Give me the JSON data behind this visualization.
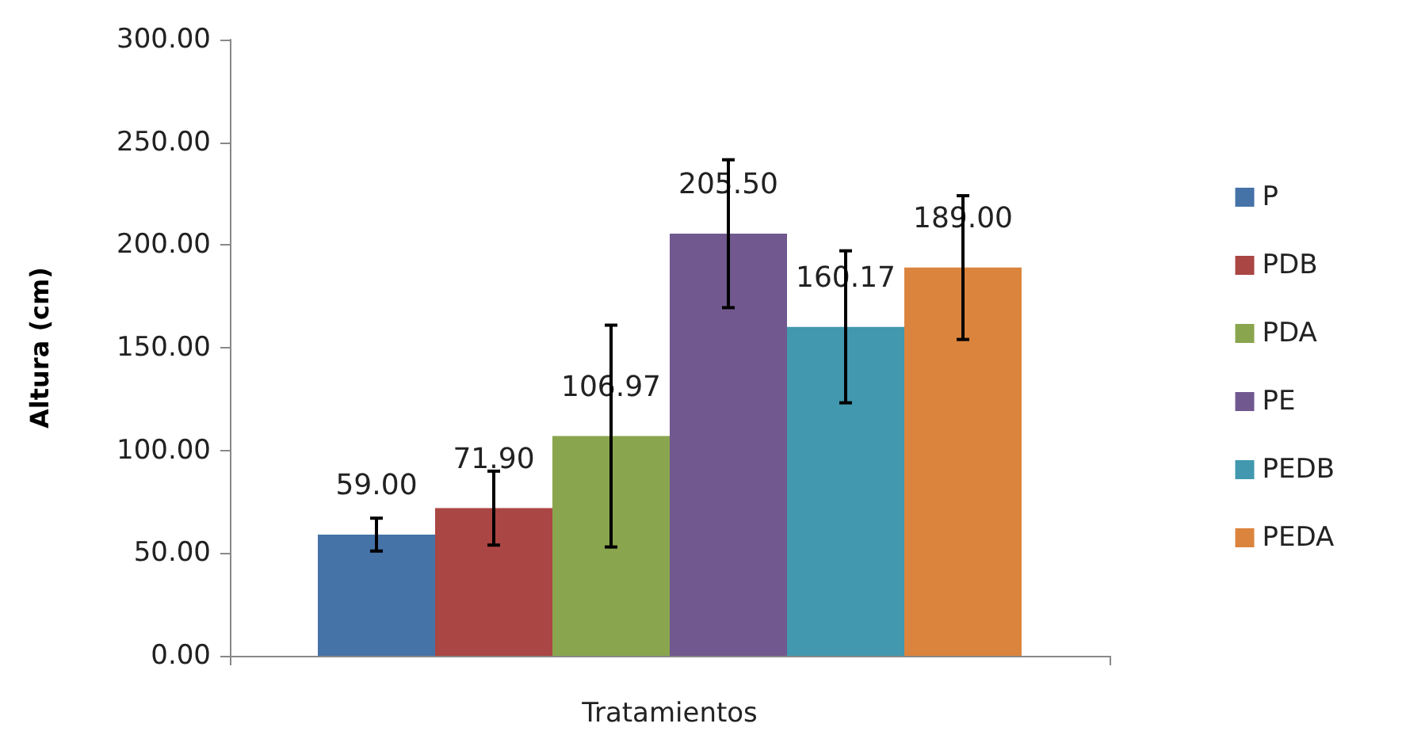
{
  "chart_data": {
    "type": "bar",
    "xlabel": "Tratamientos",
    "ylabel": "Altura (cm)",
    "categories": [
      null
    ],
    "series": [
      {
        "name": "P",
        "color": "#4572a7",
        "values": [
          59.0
        ],
        "errors": [
          8
        ],
        "value_labels": [
          "59.00"
        ]
      },
      {
        "name": "PDB",
        "color": "#aa4643",
        "values": [
          71.9
        ],
        "errors": [
          18
        ],
        "value_labels": [
          "71.90"
        ]
      },
      {
        "name": "PDA",
        "color": "#89a54e",
        "values": [
          106.97
        ],
        "errors": [
          54
        ],
        "value_labels": [
          "106.97"
        ]
      },
      {
        "name": "PE",
        "color": "#71588f",
        "values": [
          205.5
        ],
        "errors": [
          36
        ],
        "value_labels": [
          "205.50"
        ]
      },
      {
        "name": "PEDB",
        "color": "#4198af",
        "values": [
          160.17
        ],
        "errors": [
          37
        ],
        "value_labels": [
          "160.17"
        ]
      },
      {
        "name": "PEDA",
        "color": "#db843d",
        "values": [
          189.0
        ],
        "errors": [
          35
        ],
        "value_labels": [
          "189.00"
        ]
      }
    ],
    "ylim": [
      0,
      300
    ],
    "yticks": [
      {
        "value": 0,
        "label": "0.00"
      },
      {
        "value": 50,
        "label": "50.00"
      },
      {
        "value": 100,
        "label": "100.00"
      },
      {
        "value": 150,
        "label": "150.00"
      },
      {
        "value": 200,
        "label": "200.00"
      },
      {
        "value": 250,
        "label": "250.00"
      },
      {
        "value": 300,
        "label": "300.00"
      }
    ],
    "grid": false,
    "legend": "right"
  }
}
